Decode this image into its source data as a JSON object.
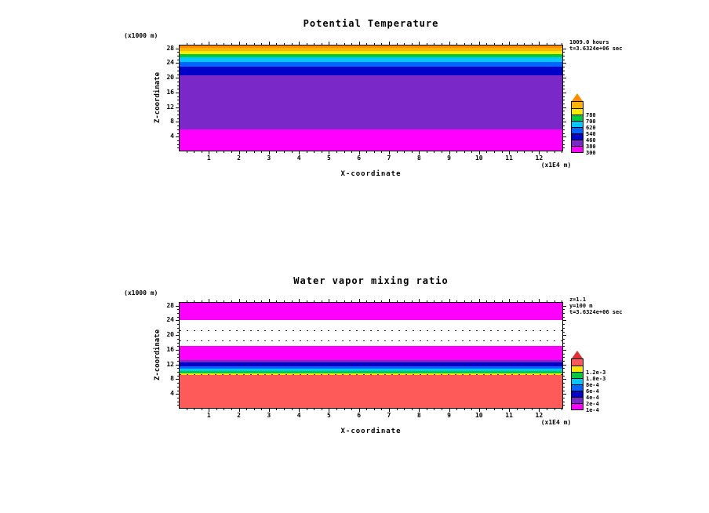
{
  "page": {
    "background": "#ffffff"
  },
  "chart_data": [
    {
      "type": "heatmap",
      "subtype": "filled-contour-xz-cross-section",
      "title": "Potential Temperature",
      "annotations": [
        "1009.0 hours",
        "t=3.6324e+06 sec"
      ],
      "x_axis": {
        "label": "X-coordinate",
        "units": "(x1E4 m)",
        "range": [
          0,
          12.8
        ],
        "ticks": [
          1,
          2,
          3,
          4,
          5,
          6,
          7,
          8,
          9,
          10,
          11,
          12
        ],
        "minor_step": 0.25
      },
      "y_axis": {
        "label": "Z-coordinate",
        "units": "(x1000 m)",
        "range": [
          0,
          29
        ],
        "ticks": [
          4,
          8,
          12,
          16,
          20,
          24,
          28
        ],
        "minor_step": 1
      },
      "bands": [
        {
          "from": 0,
          "to": 6.2,
          "color": "#ff00ff"
        },
        {
          "from": 6.2,
          "to": 20.8,
          "color": "#7a28c8"
        },
        {
          "from": 20.8,
          "to": 23.2,
          "color": "#0000c8"
        },
        {
          "from": 23.2,
          "to": 24.6,
          "color": "#0064ff"
        },
        {
          "from": 24.6,
          "to": 25.7,
          "color": "#00c8ff"
        },
        {
          "from": 25.7,
          "to": 26.6,
          "color": "#00c83c"
        },
        {
          "from": 26.6,
          "to": 27.5,
          "color": "#ffea00"
        },
        {
          "from": 27.5,
          "to": 28.3,
          "color": "#ffb400"
        },
        {
          "from": 28.3,
          "to": 29,
          "color": "#ff8c00"
        }
      ],
      "dotted_lines": [],
      "colorbar": {
        "arrow_color": "#ff8c00",
        "segments": [
          {
            "color": "#ff00ff",
            "label": "300"
          },
          {
            "color": "#7a28c8",
            "label": "380"
          },
          {
            "color": "#0000c8",
            "label": "460"
          },
          {
            "color": "#0064ff",
            "label": "540"
          },
          {
            "color": "#00c8ff",
            "label": "620"
          },
          {
            "color": "#00c83c",
            "label": "700"
          },
          {
            "color": "#ffea00",
            "label": "780"
          },
          {
            "color": "#ffb400",
            "label": ""
          }
        ]
      }
    },
    {
      "type": "heatmap",
      "subtype": "filled-contour-xz-cross-section",
      "title": "Water vapor mixing ratio",
      "annotations": [
        "z=1.1",
        "y=100 m",
        "t=3.6324e+06 sec"
      ],
      "x_axis": {
        "label": "X-coordinate",
        "units": "(x1E4 m)",
        "range": [
          0,
          12.8
        ],
        "ticks": [
          1,
          2,
          3,
          4,
          5,
          6,
          7,
          8,
          9,
          10,
          11,
          12
        ],
        "minor_step": 0.25
      },
      "y_axis": {
        "label": "Z-coordinate",
        "units": "(x1000 m)",
        "range": [
          0,
          29
        ],
        "ticks": [
          4,
          8,
          12,
          16,
          20,
          24,
          28
        ],
        "minor_step": 1
      },
      "bands": [
        {
          "from": 0,
          "to": 9.4,
          "color": "#ff5a5a"
        },
        {
          "from": 9.4,
          "to": 9.9,
          "color": "#ffea00"
        },
        {
          "from": 9.9,
          "to": 10.4,
          "color": "#00c83c"
        },
        {
          "from": 10.4,
          "to": 11.0,
          "color": "#00c8ff"
        },
        {
          "from": 11.0,
          "to": 11.7,
          "color": "#0064ff"
        },
        {
          "from": 11.7,
          "to": 12.7,
          "color": "#0000c8"
        },
        {
          "from": 12.7,
          "to": 13.5,
          "color": "#7a28c8"
        },
        {
          "from": 13.5,
          "to": 17.2,
          "color": "#ff00ff"
        },
        {
          "from": 17.2,
          "to": 24.4,
          "color": "#ffffff"
        },
        {
          "from": 24.4,
          "to": 29,
          "color": "#ff00ff"
        }
      ],
      "dotted_lines": [
        {
          "y": 21.6
        },
        {
          "y": 18.8
        },
        {
          "y": 9.65
        }
      ],
      "colorbar": {
        "arrow_color": "#e03232",
        "segments": [
          {
            "color": "#ff00ff",
            "label": "1e-4"
          },
          {
            "color": "#7a28c8",
            "label": "2e-4"
          },
          {
            "color": "#0000c8",
            "label": "4e-4"
          },
          {
            "color": "#0064ff",
            "label": "6e-4"
          },
          {
            "color": "#00c8ff",
            "label": "8e-4"
          },
          {
            "color": "#00c83c",
            "label": "1.0e-3"
          },
          {
            "color": "#ffea00",
            "label": "1.2e-3"
          },
          {
            "color": "#ff5a5a",
            "label": ""
          }
        ]
      }
    }
  ]
}
